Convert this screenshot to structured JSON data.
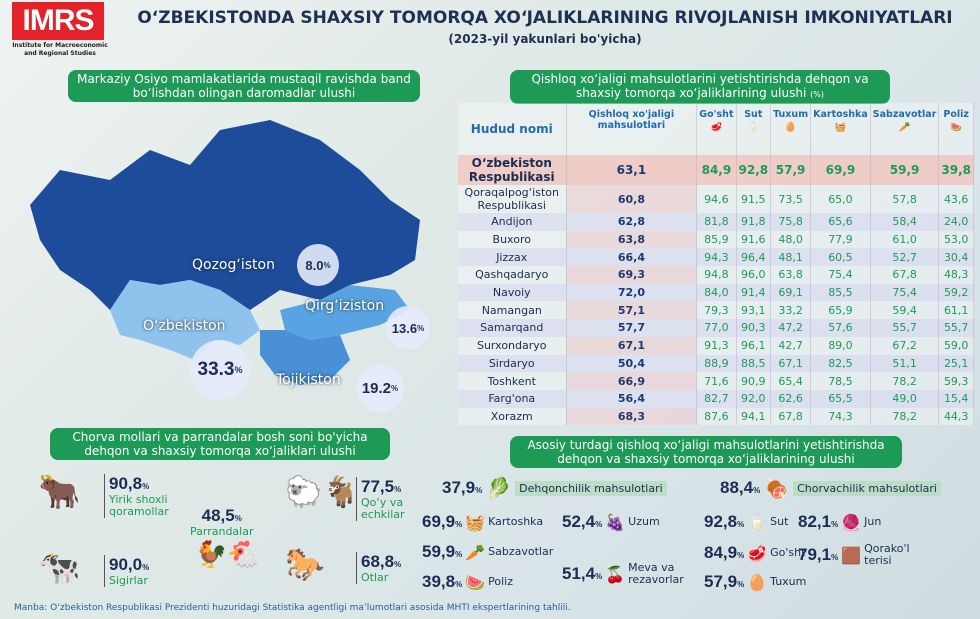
{
  "logo": {
    "text": "IMRS",
    "subtitle": "Institute for Macroeconomic and Regional Studies"
  },
  "header": {
    "title": "O‘ZBEKISTONDA SHAXSIY TOMORQA XO‘JALIKLARINING RIVOJLANISH IMKONIYATLARI",
    "subtitle": "(2023-yil yakunlari bo'yicha)"
  },
  "map_section": {
    "title": "Markaziy Osiyo mamlakatlarida mustaqil ravishda band bo‘lishdan olingan daromadlar ulushi",
    "countries": [
      {
        "name": "Qozog‘iston",
        "value": "8.0",
        "unit": "%"
      },
      {
        "name": "O‘zbekiston",
        "value": "33.3",
        "unit": "%"
      },
      {
        "name": "Qirg‘iziston",
        "value": "13.6",
        "unit": "%"
      },
      {
        "name": "Tojikiston",
        "value": "19.2",
        "unit": "%"
      }
    ]
  },
  "table_section": {
    "title": "Qishloq xo‘jaligi mahsulotlarini yetishtirishda dehqon va shaxsiy tomorqa xo‘jaliklarining ulushi",
    "unit": "(%)",
    "columns": [
      "Hudud nomi",
      "Qishloq xo'jaligi mahsulotlari",
      "Go'sht",
      "Sut",
      "Tuxum",
      "Kartoshka",
      "Sabzavotlar",
      "Poliz"
    ],
    "rows": [
      [
        "O‘zbekiston Respublikasi",
        "63,1",
        "84,9",
        "92,8",
        "57,9",
        "69,9",
        "59,9",
        "39,8"
      ],
      [
        "Qoraqalpog‘iston Respublikasi",
        "60,8",
        "94,6",
        "91,5",
        "73,5",
        "65,0",
        "57,8",
        "43,6"
      ],
      [
        "Andijon",
        "62,8",
        "81,8",
        "91,8",
        "75,8",
        "65,6",
        "58,4",
        "24,0"
      ],
      [
        "Buxoro",
        "63,8",
        "85,9",
        "91,6",
        "48,0",
        "77,9",
        "61,0",
        "53,0"
      ],
      [
        "Jizzax",
        "66,4",
        "94,3",
        "96,4",
        "48,1",
        "60,5",
        "52,7",
        "30,4"
      ],
      [
        "Qashqadaryo",
        "69,3",
        "94,8",
        "96,0",
        "63,8",
        "75,4",
        "67,8",
        "48,3"
      ],
      [
        "Navoiy",
        "72,0",
        "84,0",
        "91,4",
        "69,1",
        "85,5",
        "75,4",
        "59,2"
      ],
      [
        "Namangan",
        "57,1",
        "79,3",
        "93,1",
        "33,2",
        "65,9",
        "59,4",
        "61,1"
      ],
      [
        "Samarqand",
        "57,7",
        "77,0",
        "90,3",
        "47,2",
        "57,6",
        "55,7",
        "55,7"
      ],
      [
        "Surxondaryo",
        "67,1",
        "91,3",
        "96,1",
        "42,7",
        "89,0",
        "67,2",
        "59,0"
      ],
      [
        "Sirdaryo",
        "50,4",
        "88,9",
        "88,5",
        "67,1",
        "82,5",
        "51,1",
        "25,1"
      ],
      [
        "Toshkent",
        "66,9",
        "71,6",
        "90,9",
        "65,4",
        "78,5",
        "78,2",
        "59,3"
      ],
      [
        "Farg'ona",
        "56,4",
        "82,7",
        "92,0",
        "62,6",
        "65,5",
        "49,0",
        "15,4"
      ],
      [
        "Xorazm",
        "68,3",
        "87,6",
        "94,1",
        "67,8",
        "74,3",
        "78,2",
        "44,3"
      ]
    ]
  },
  "livestock_section": {
    "title": "Chorva mollari va parrandalar bosh soni bo'yicha dehqon va shaxsiy tomorqa xo‘jaliklari ulushi",
    "unit": "%",
    "items": [
      {
        "value": "90,8",
        "label": "Yirik shoxli qoramollar"
      },
      {
        "value": "90,0",
        "label": "Sigirlar"
      },
      {
        "value": "48,5",
        "label": "Parrandalar"
      },
      {
        "value": "77,5",
        "label": "Qo‘y va echkilar"
      },
      {
        "value": "68,8",
        "label": "Otlar"
      }
    ]
  },
  "products_section": {
    "title": "Asosiy turdagi qishloq xo‘jaligi mahsulotlarini yetishtirishda dehqon va shaxsiy tomorqa xo‘jaliklarining ulushi",
    "unit": "%",
    "crop": {
      "value": "37,9",
      "label": "Dehqonchilik mahsulotlari",
      "items": [
        {
          "value": "69,9",
          "label": "Kartoshka"
        },
        {
          "value": "59,9",
          "label": "Sabzavotlar"
        },
        {
          "value": "39,8",
          "label": "Poliz"
        },
        {
          "value": "52,4",
          "label": "Uzum"
        },
        {
          "value": "51,4",
          "label": "Meva va rezavorlar"
        }
      ]
    },
    "animal": {
      "value": "88,4",
      "label": "Chorvachilik mahsulotlari",
      "items": [
        {
          "value": "92,8",
          "label": "Sut"
        },
        {
          "value": "84,9",
          "label": "Go'sht"
        },
        {
          "value": "57,9",
          "label": "Tuxum"
        },
        {
          "value": "82,1",
          "label": "Jun"
        },
        {
          "value": "79,1",
          "label": "Qorako'l terisi"
        }
      ]
    }
  },
  "footer": {
    "source": "Manba: O‘zbekiston Respublikasi Prezidenti huzuridagi Statistika agentligi ma’lumotlari asosida MHTI ekspertlarining tahlili."
  }
}
